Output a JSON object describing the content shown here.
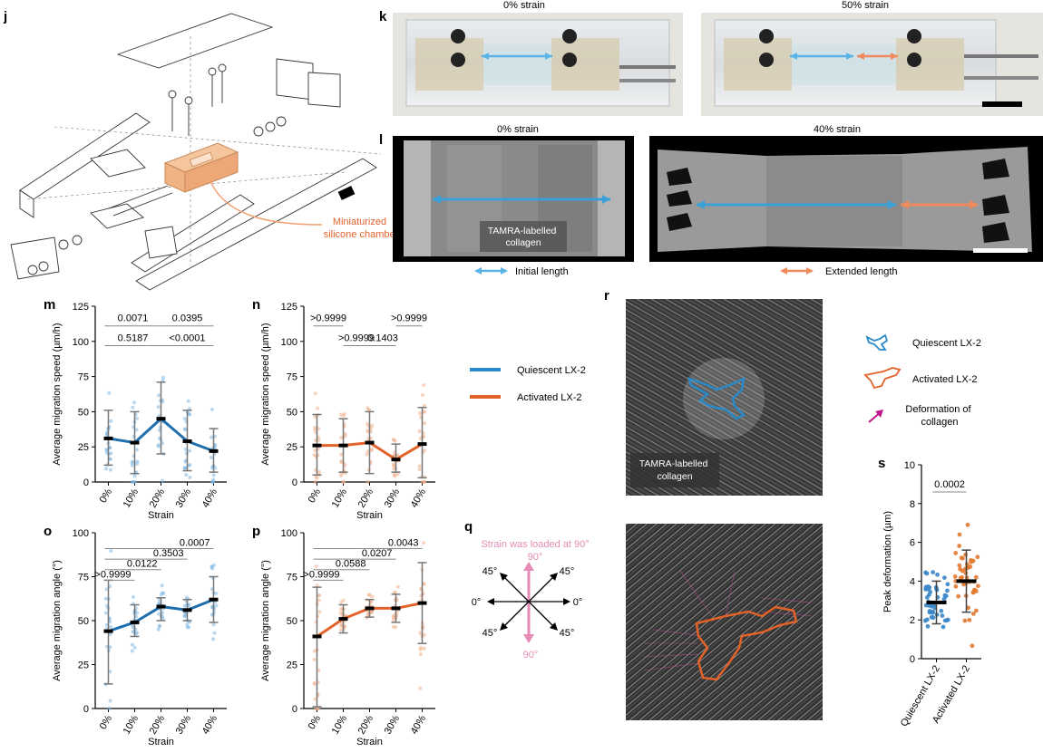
{
  "panels": {
    "j": "j",
    "k": "k",
    "l": "l",
    "m": "m",
    "n": "n",
    "o": "o",
    "p": "p",
    "q": "q",
    "r": "r",
    "s": "s"
  },
  "colors": {
    "quiescent": "#1f77b4",
    "quiescent_light": "#4aa3df",
    "activated": "#e2622a",
    "activated_light": "#f09a6b",
    "pink": "#e58bb5",
    "arrow_blue": "#5ab4e6",
    "arrow_orange": "#f08a5d"
  },
  "panel_j": {
    "label": "Miniaturized\nsilicone chamber",
    "label_line1": "Miniaturized",
    "label_line2": "silicone chamber"
  },
  "panel_k": {
    "left_title": "0% strain",
    "right_title": "50% strain"
  },
  "panel_l": {
    "left_title": "0% strain",
    "right_title": "40% strain",
    "overlay_line1": "TAMRA-labelled",
    "overlay_line2": "collagen",
    "legend_initial": "Initial length",
    "legend_extended": "Extended length"
  },
  "legend_lines": {
    "quiescent": "Quiescent LX-2",
    "activated": "Activated LX-2"
  },
  "panel_q": {
    "title": "Strain was loaded at 90°",
    "top": "90°",
    "bottom": "90°",
    "left": "0°",
    "right": "0°",
    "tl": "45°",
    "tr": "45°",
    "bl": "45°",
    "br": "45°"
  },
  "panel_r": {
    "overlay_line1": "TAMRA-labelled",
    "overlay_line2": "collagen",
    "legend_quiescent": "Quiescent LX-2",
    "legend_activated": "Activated LX-2",
    "legend_deformation_line1": "Deformation of",
    "legend_deformation_line2": "collagen"
  },
  "chart_data": [
    {
      "id": "m",
      "type": "scatter",
      "categories": [
        "0%",
        "10%",
        "20%",
        "30%",
        "40%"
      ],
      "means": [
        31,
        28,
        45,
        29,
        22
      ],
      "sd_low": [
        12,
        6,
        20,
        8,
        7
      ],
      "sd_high": [
        51,
        50,
        71,
        51,
        38
      ],
      "xlabel": "Strain",
      "ylabel": "Average migration speed (µm/h)",
      "ylim": [
        0,
        125
      ],
      "yticks": [
        0,
        25,
        50,
        75,
        100,
        125
      ],
      "series_color": "quiescent",
      "comparisons": [
        {
          "a": 0,
          "b": 2,
          "label": "0.0071",
          "y": 111
        },
        {
          "a": 2,
          "b": 4,
          "label": "0.0395",
          "y": 111
        },
        {
          "a": 0,
          "b": 2,
          "label": "0.5187",
          "y": 97
        },
        {
          "a": 2,
          "b": 4,
          "label": "<0.0001",
          "y": 97
        }
      ]
    },
    {
      "id": "n",
      "type": "scatter",
      "categories": [
        "0%",
        "10%",
        "20%",
        "30%",
        "40%"
      ],
      "means": [
        26,
        26,
        28,
        16,
        27
      ],
      "sd_low": [
        5,
        7,
        6,
        7,
        3
      ],
      "sd_high": [
        48,
        45,
        50,
        27,
        53
      ],
      "xlabel": "Strain",
      "ylabel": "Average migration speed (µm/h)",
      "ylim": [
        0,
        125
      ],
      "yticks": [
        0,
        25,
        50,
        75,
        100,
        125
      ],
      "series_color": "activated",
      "comparisons": [
        {
          "a": 0,
          "b": 1,
          "label": ">0.9999",
          "y": 111
        },
        {
          "a": 3,
          "b": 4,
          "label": ">0.9999",
          "y": 111
        },
        {
          "a": 1,
          "b": 2,
          "label": ">0.9999",
          "y": 97
        },
        {
          "a": 2,
          "b": 3,
          "label": "0.1403",
          "y": 97
        }
      ]
    },
    {
      "id": "o",
      "type": "scatter",
      "categories": [
        "0%",
        "10%",
        "20%",
        "30%",
        "40%"
      ],
      "means": [
        44,
        49,
        58,
        56,
        62
      ],
      "sd_low": [
        14,
        41,
        50,
        50,
        49
      ],
      "sd_high": [
        73,
        59,
        63,
        62,
        75
      ],
      "xlabel": "Strain",
      "ylabel": "Average migration angle (°)",
      "ylim": [
        0,
        100
      ],
      "yticks": [
        0,
        25,
        50,
        75,
        100
      ],
      "series_color": "quiescent",
      "comparisons": [
        {
          "a": 0,
          "b": 4,
          "label": "0.0007",
          "y": 91
        },
        {
          "a": 0,
          "b": 3,
          "label": "0.3503",
          "y": 85
        },
        {
          "a": 0,
          "b": 2,
          "label": "0.0122",
          "y": 79
        },
        {
          "a": 0,
          "b": 1,
          "label": ">0.9999",
          "y": 73
        }
      ]
    },
    {
      "id": "p",
      "type": "scatter",
      "categories": [
        "0%",
        "10%",
        "20%",
        "30%",
        "40%"
      ],
      "means": [
        41,
        51,
        57,
        57,
        60
      ],
      "sd_low": [
        1,
        43,
        52,
        49,
        37
      ],
      "sd_high": [
        69,
        59,
        62,
        65,
        83
      ],
      "xlabel": "Strain",
      "ylabel": "Average migration angle (°)",
      "ylim": [
        0,
        100
      ],
      "yticks": [
        0,
        25,
        50,
        75,
        100
      ],
      "series_color": "activated",
      "comparisons": [
        {
          "a": 0,
          "b": 4,
          "label": "0.0043",
          "y": 91
        },
        {
          "a": 0,
          "b": 3,
          "label": "0.0207",
          "y": 85
        },
        {
          "a": 0,
          "b": 2,
          "label": "0.0588",
          "y": 79
        },
        {
          "a": 0,
          "b": 1,
          "label": ">0.9999",
          "y": 73
        }
      ]
    },
    {
      "id": "s",
      "type": "scatter",
      "categories": [
        "Quiescent LX-2",
        "Activated LX-2"
      ],
      "means": [
        2.9,
        4.0
      ],
      "sd_low": [
        1.8,
        2.4
      ],
      "sd_high": [
        4.0,
        5.6
      ],
      "xlabel": "",
      "ylabel": "Peak deformation (µm)",
      "ylim": [
        0,
        10
      ],
      "yticks": [
        0,
        2,
        4,
        6,
        8,
        10
      ],
      "comparisons": [
        {
          "a": 0,
          "b": 1,
          "label": "0.0002",
          "y": 8.6
        }
      ]
    }
  ]
}
